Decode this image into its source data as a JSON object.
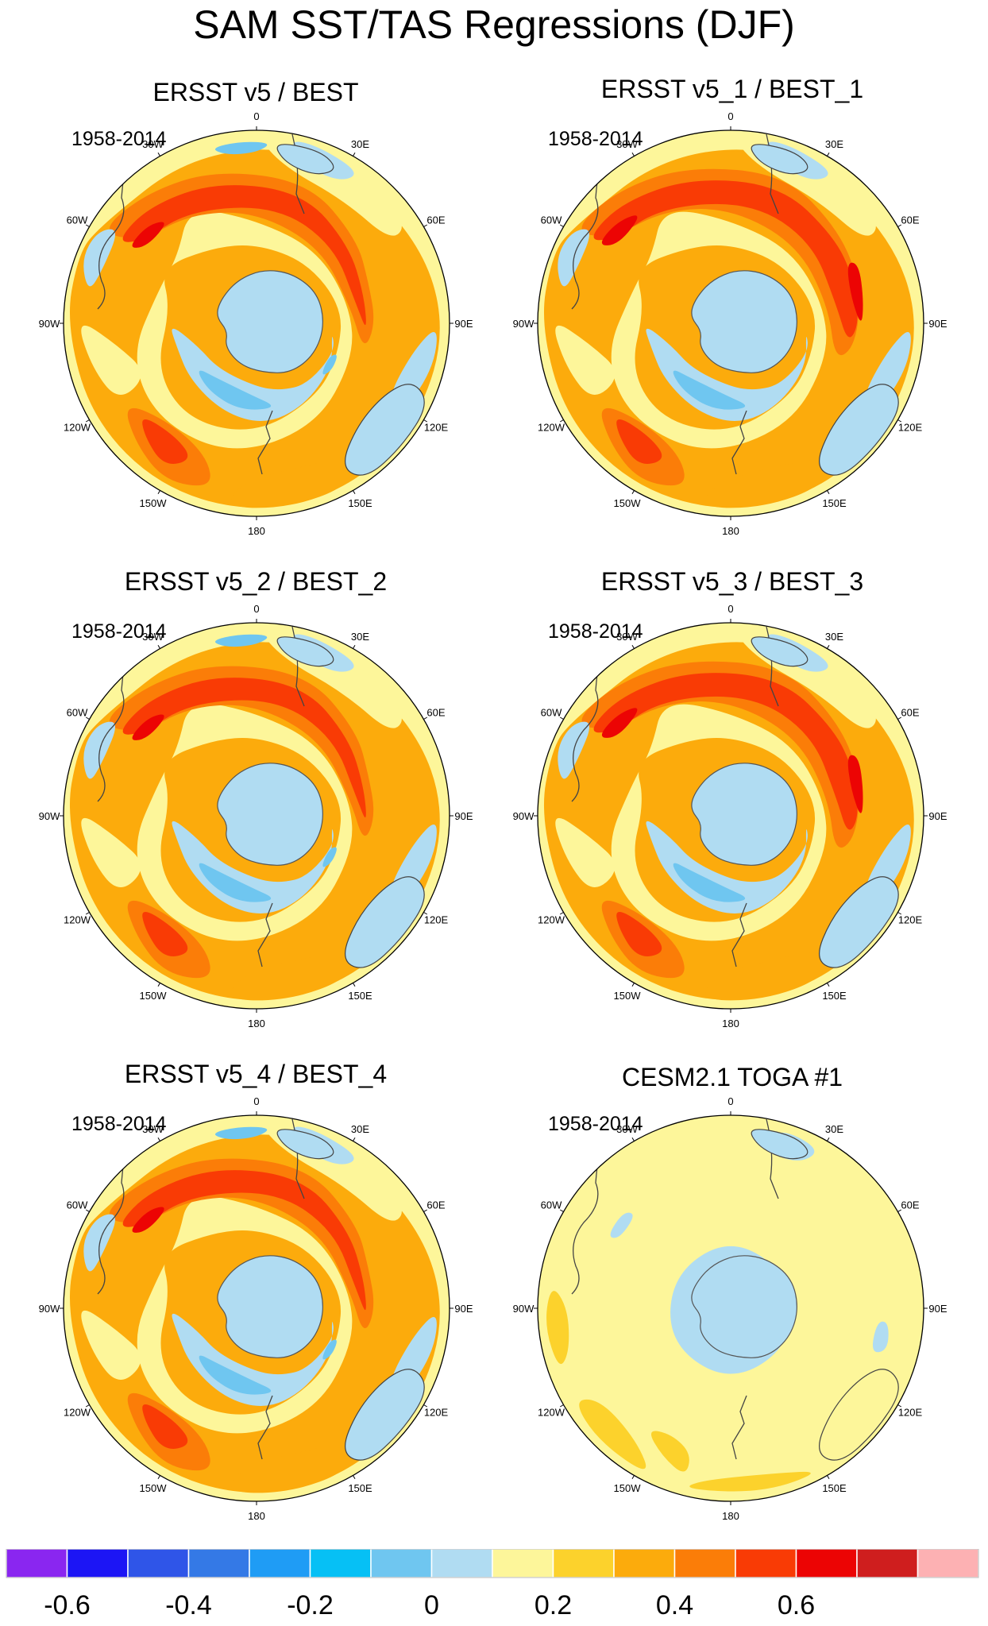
{
  "title": "SAM SST/TAS Regressions (DJF)",
  "panels": [
    {
      "title": "ERSST v5 / BEST",
      "period": "1958-2014",
      "variant": "obs"
    },
    {
      "title": "ERSST v5_1 / BEST_1",
      "period": "1958-2014",
      "variant": "obs1"
    },
    {
      "title": "ERSST v5_2 / BEST_2",
      "period": "1958-2014",
      "variant": "obs"
    },
    {
      "title": "ERSST v5_3 / BEST_3",
      "period": "1958-2014",
      "variant": "obs1"
    },
    {
      "title": "ERSST v5_4 / BEST_4",
      "period": "1958-2014",
      "variant": "obs"
    },
    {
      "title": "CESM2.1 TOGA #1",
      "period": "1958-2014",
      "variant": "model"
    }
  ],
  "longitude_labels": [
    "0",
    "30E",
    "60E",
    "90E",
    "120E",
    "150E",
    "180",
    "150W",
    "120W",
    "90W",
    "60W",
    "30W"
  ],
  "colorbar": {
    "colors": [
      "#8a26f0",
      "#1c15f5",
      "#2f55e8",
      "#3479e6",
      "#1f9cf5",
      "#06c0f5",
      "#6fc6f0",
      "#b0dcf2",
      "#fdf69a",
      "#fcd22c",
      "#fcab0c",
      "#fb7d08",
      "#f93b05",
      "#ec0404",
      "#cf1e1e",
      "#fdb1b3"
    ],
    "tick_labels": [
      "-0.6",
      "-0.4",
      "-0.2",
      "0",
      "0.2",
      "0.4",
      "0.6"
    ]
  }
}
